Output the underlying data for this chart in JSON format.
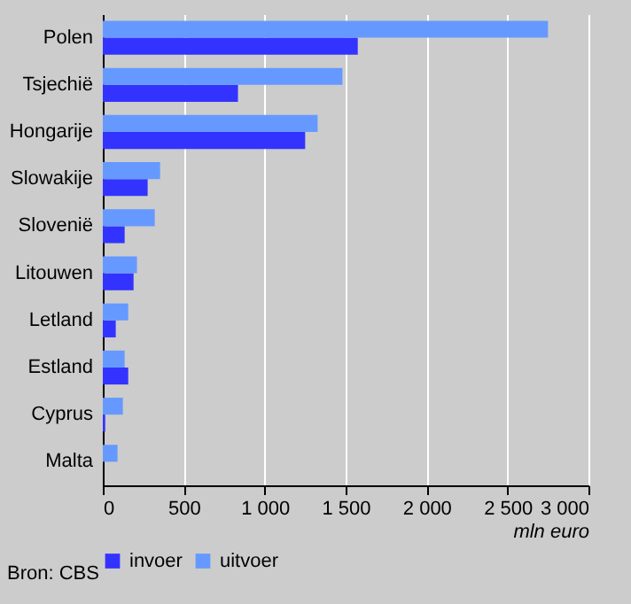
{
  "chart_data": {
    "type": "bar",
    "orientation": "horizontal",
    "categories": [
      "Polen",
      "Tsjechië",
      "Hongarije",
      "Slowakije",
      "Slovenië",
      "Litouwen",
      "Letland",
      "Estland",
      "Cyprus",
      "Malta"
    ],
    "series": [
      {
        "name": "invoer",
        "color": "#3333ff",
        "values": [
          1575,
          835,
          1250,
          277,
          135,
          190,
          80,
          157,
          15,
          0
        ]
      },
      {
        "name": "uitvoer",
        "color": "#6699ff",
        "values": [
          2750,
          1480,
          1327,
          354,
          321,
          211,
          157,
          135,
          124,
          91
        ]
      }
    ],
    "xlim": [
      0,
      3000
    ],
    "xticks": [
      0,
      500,
      {
        "value": 1000,
        "label": "1 000"
      },
      {
        "value": 1500,
        "label": "1 500"
      },
      {
        "value": 2000,
        "label": "2 000"
      },
      {
        "value": 2500,
        "label": "2 500"
      },
      {
        "value": 3000,
        "label": "3 000"
      }
    ],
    "xlabel": "mln euro",
    "grid": "x",
    "legend": "bottom",
    "annotations": [
      "Bron: CBS"
    ]
  }
}
